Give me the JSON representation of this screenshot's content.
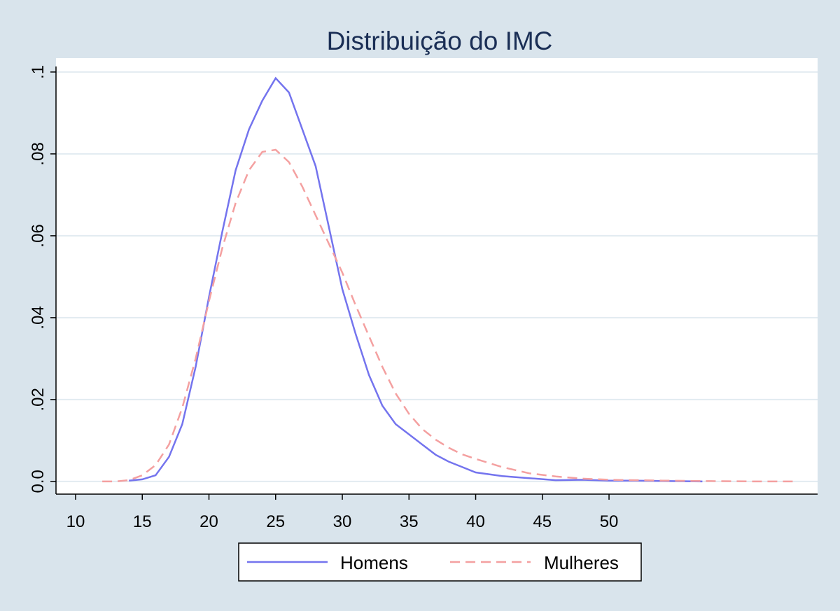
{
  "chart_data": {
    "type": "line",
    "title": "Distribuição do IMC",
    "x": [
      12,
      13,
      14,
      15,
      16,
      17,
      18,
      19,
      20,
      21,
      22,
      23,
      24,
      25,
      26,
      27,
      28,
      29,
      30,
      31,
      32,
      33,
      34,
      35,
      36,
      37,
      38,
      39,
      40,
      42,
      44,
      46,
      48,
      50,
      52,
      54,
      57,
      61,
      64
    ],
    "series": [
      {
        "name": "Homens",
        "color": "#7474ee",
        "dash": false,
        "values": [
          null,
          null,
          0.0002,
          0.0005,
          0.0015,
          0.006,
          0.014,
          0.028,
          0.045,
          0.061,
          0.076,
          0.086,
          0.093,
          0.0985,
          0.095,
          0.086,
          0.077,
          0.062,
          0.047,
          0.036,
          0.026,
          0.0185,
          0.014,
          0.0115,
          0.009,
          0.0065,
          0.0048,
          0.0035,
          0.0022,
          0.0013,
          0.0008,
          0.0003,
          0.0004,
          0.0002,
          0.0002,
          0.0001,
          0.0,
          null,
          null
        ]
      },
      {
        "name": "Mulheres",
        "color": "#f4a0a0",
        "dash": true,
        "values": [
          0,
          0,
          0.0003,
          0.0015,
          0.004,
          0.009,
          0.018,
          0.03,
          0.044,
          0.057,
          0.068,
          0.076,
          0.0805,
          0.081,
          0.078,
          0.072,
          0.065,
          0.058,
          0.051,
          0.043,
          0.0355,
          0.028,
          0.0215,
          0.0165,
          0.0128,
          0.0102,
          0.0082,
          0.0066,
          0.0055,
          0.0035,
          0.002,
          0.0012,
          0.0007,
          0.0004,
          0.0003,
          0.0002,
          0.0001,
          0,
          0
        ]
      }
    ],
    "xlim": [
      8.53,
      65.64
    ],
    "xticks": [
      10,
      15,
      20,
      25,
      30,
      35,
      40,
      45,
      50
    ],
    "ylim": [
      -0.0031,
      0.1034
    ],
    "yticks": [
      {
        "value": 0,
        "label": "0.0"
      },
      {
        "value": 0.02,
        "label": ".02"
      },
      {
        "value": 0.04,
        "label": ".04"
      },
      {
        "value": 0.06,
        "label": ".06"
      },
      {
        "value": 0.08,
        "label": ".08"
      },
      {
        "value": 0.1,
        "label": ".1"
      }
    ],
    "grid": true
  }
}
